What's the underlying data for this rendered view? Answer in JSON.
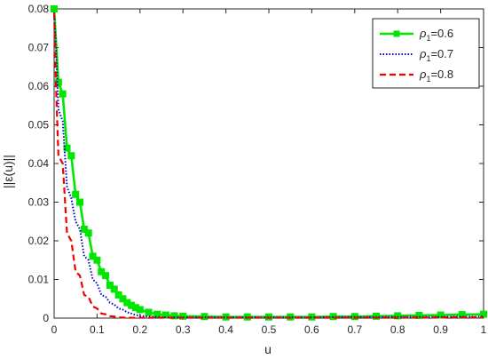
{
  "chart_data": {
    "type": "line",
    "xlabel": "u",
    "ylabel": "||ε(u)||",
    "xlim": [
      0,
      1
    ],
    "ylim": [
      0,
      0.08
    ],
    "xticks": [
      0,
      0.1,
      0.2,
      0.3,
      0.4,
      0.5,
      0.6,
      0.7,
      0.8,
      0.9,
      1
    ],
    "xtick_labels": [
      "0",
      "0.1",
      "0.2",
      "0.3",
      "0.4",
      "0.5",
      "0.6",
      "0.7",
      "0.8",
      "0.9",
      "1"
    ],
    "yticks": [
      0,
      0.01,
      0.02,
      0.03,
      0.04,
      0.05,
      0.06,
      0.07,
      0.08
    ],
    "ytick_labels": [
      "0",
      "0.01",
      "0.02",
      "0.03",
      "0.04",
      "0.05",
      "0.06",
      "0.07",
      "0.08"
    ],
    "grid": false,
    "legend_position": "top-right",
    "series": [
      {
        "name": "ρ1=0.6",
        "legend_base": "ρ",
        "legend_sub": "1",
        "legend_rest": "=0.6",
        "color": "#00e600",
        "style": "solid-square-markers",
        "x": [
          0,
          0.01,
          0.02,
          0.03,
          0.04,
          0.05,
          0.06,
          0.07,
          0.08,
          0.09,
          0.1,
          0.11,
          0.12,
          0.13,
          0.14,
          0.15,
          0.16,
          0.17,
          0.18,
          0.19,
          0.2,
          0.22,
          0.24,
          0.26,
          0.28,
          0.3,
          0.35,
          0.4,
          0.45,
          0.5,
          0.55,
          0.6,
          0.65,
          0.7,
          0.75,
          0.8,
          0.85,
          0.9,
          0.95,
          1.0
        ],
        "y": [
          0.08,
          0.061,
          0.058,
          0.044,
          0.042,
          0.032,
          0.03,
          0.023,
          0.022,
          0.016,
          0.015,
          0.012,
          0.011,
          0.0085,
          0.0075,
          0.006,
          0.005,
          0.004,
          0.0033,
          0.0027,
          0.0022,
          0.0015,
          0.001,
          0.0008,
          0.0006,
          0.0005,
          0.0004,
          0.0003,
          0.0003,
          0.0003,
          0.0003,
          0.0003,
          0.0004,
          0.0004,
          0.0005,
          0.0006,
          0.0007,
          0.0008,
          0.0009,
          0.001
        ]
      },
      {
        "name": "ρ1=0.7",
        "legend_base": "ρ",
        "legend_sub": "1",
        "legend_rest": "=0.7",
        "color": "#0000cc",
        "style": "dotted",
        "x": [
          0,
          0.005,
          0.01,
          0.02,
          0.03,
          0.04,
          0.05,
          0.06,
          0.07,
          0.08,
          0.09,
          0.1,
          0.11,
          0.12,
          0.13,
          0.14,
          0.15,
          0.16,
          0.17,
          0.18,
          0.19,
          0.2,
          0.22,
          0.24,
          0.26,
          0.3,
          0.4,
          0.5,
          0.6,
          0.7,
          0.8,
          0.9,
          1.0
        ],
        "y": [
          0.079,
          0.068,
          0.054,
          0.051,
          0.034,
          0.031,
          0.025,
          0.023,
          0.016,
          0.015,
          0.01,
          0.009,
          0.006,
          0.0055,
          0.004,
          0.0035,
          0.0025,
          0.0022,
          0.0015,
          0.0012,
          0.0008,
          0.0006,
          0.0004,
          0.0003,
          0.0002,
          0.0002,
          0.0002,
          0.0002,
          0.0002,
          0.0003,
          0.0003,
          0.0003,
          0.0004
        ]
      },
      {
        "name": "ρ1=0.8",
        "legend_base": "ρ",
        "legend_sub": "1",
        "legend_rest": "=0.8",
        "color": "#ee0000",
        "style": "dashed",
        "x": [
          0,
          0.005,
          0.01,
          0.02,
          0.03,
          0.04,
          0.05,
          0.06,
          0.07,
          0.08,
          0.09,
          0.1,
          0.11,
          0.12,
          0.13,
          0.14,
          0.15,
          0.17,
          0.2,
          0.3,
          0.4,
          0.5,
          0.6,
          0.7,
          0.8,
          0.9,
          1.0
        ],
        "y": [
          0.079,
          0.058,
          0.042,
          0.04,
          0.022,
          0.02,
          0.012,
          0.011,
          0.006,
          0.0055,
          0.003,
          0.0025,
          0.0012,
          0.001,
          0.0005,
          0.0004,
          0.0002,
          0.0001,
          0.0001,
          0.0001,
          0.0001,
          0.0001,
          0.0001,
          0.0001,
          0.0001,
          0.0002,
          0.0002
        ]
      }
    ]
  }
}
